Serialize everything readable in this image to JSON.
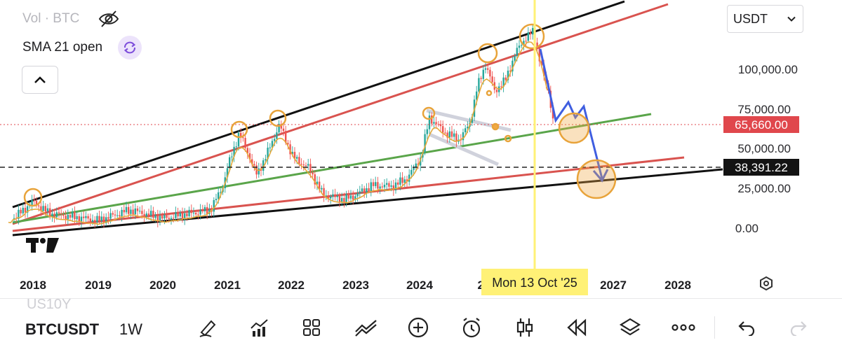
{
  "legend": {
    "volume_label": "Vol · BTC",
    "indicator_label": "SMA 21 open"
  },
  "currency_select": {
    "value": "USDT"
  },
  "chart_data": {
    "type": "candlestick",
    "title": "",
    "symbol": "BTCUSDT",
    "interval": "1W",
    "x_ticks": [
      "2018",
      "2019",
      "2020",
      "2021",
      "2022",
      "2023",
      "2024",
      "20",
      "2027",
      "2028"
    ],
    "y_ticks": [
      "100,000.00",
      "75,000.00",
      "50,000.00",
      "25,000.00",
      "0.00"
    ],
    "last_price_label": "65,660.00",
    "last_price": 65660,
    "dashed_level_label": "38,391.22",
    "dashed_level": 38391.22,
    "crosshair_label": "Mon 13 Oct '25",
    "ylim": [
      -18000,
      137000
    ],
    "colors": {
      "up": "#26a69a",
      "down": "#ef5350",
      "last_price": "#e0474c",
      "crosshair": "#fff176"
    }
  },
  "bottom_bar": {
    "symbol": "BTCUSDT",
    "interval": "1W",
    "ghost_label": "US10Y",
    "tools": [
      "pencil-icon",
      "indicators-icon",
      "grid-icon",
      "trend-icon",
      "add-icon",
      "alarm-icon",
      "candles-icon",
      "replay-icon",
      "layers-icon",
      "more-icon",
      "undo-icon",
      "redo-icon"
    ]
  },
  "logo": "TradingView"
}
